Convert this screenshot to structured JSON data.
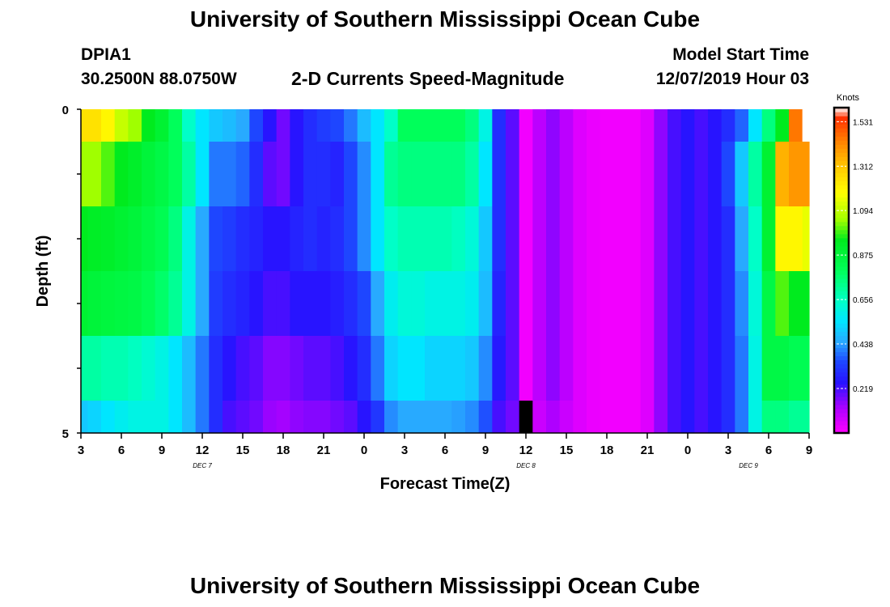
{
  "page": {
    "title_top": "University of Southern Mississippi Ocean Cube",
    "title_bottom": "University of Southern Mississippi Ocean Cube",
    "station_id": "DPIA1",
    "station_coords": "30.2500N 88.0750W",
    "plot_title": "2-D Currents Speed-Magnitude",
    "model_start_label": "Model Start Time",
    "model_start_value": "12/07/2019 Hour 03"
  },
  "colors": {
    "background": "#ffffff",
    "axis": "#000000",
    "missing": "#000000"
  },
  "chart_data": {
    "type": "heatmap",
    "xlabel": "Forecast Time(Z)",
    "ylabel": "Depth (ft)",
    "y_ticks": [
      "0",
      "5"
    ],
    "ylim": [
      0,
      5
    ],
    "x_range_hours": [
      0,
      54
    ],
    "x_tick_labels": [
      "3",
      "6",
      "9",
      "12",
      "15",
      "18",
      "21",
      "0",
      "3",
      "6",
      "9",
      "12",
      "15",
      "18",
      "21",
      "0",
      "3",
      "6",
      "9"
    ],
    "day_labels": [
      {
        "text": "DEC 7",
        "hour": 9
      },
      {
        "text": "DEC 8",
        "hour": 33
      },
      {
        "text": "DEC 9",
        "hour": 49.5
      }
    ],
    "colorbar": {
      "unit": "Knots",
      "min": 0,
      "max": 1.6,
      "tick_labels": [
        "1.531",
        "1.312",
        "1.094",
        "0.875",
        "0.656",
        "0.438",
        "0.219"
      ],
      "tick_values": [
        1.531,
        1.312,
        1.094,
        0.875,
        0.656,
        0.438,
        0.219
      ]
    },
    "depth_layers": [
      0.25,
      1.25,
      2.25,
      3.25,
      4.25,
      4.75
    ],
    "time_hours": [
      0,
      1,
      2,
      3,
      4,
      5,
      6,
      7,
      8,
      9,
      10,
      11,
      12,
      13,
      14,
      15,
      16,
      17,
      18,
      19,
      20,
      21,
      22,
      23,
      24,
      25,
      26,
      27,
      28,
      29,
      30,
      31,
      32,
      33,
      34,
      35,
      36,
      37,
      38,
      39,
      40,
      41,
      42,
      43,
      44,
      45,
      46,
      47,
      48,
      49,
      50,
      51,
      52,
      53,
      54
    ],
    "values": [
      [
        1.25,
        1.25,
        1.2,
        1.1,
        1.05,
        0.95,
        0.9,
        0.8,
        0.65,
        0.55,
        0.5,
        0.48,
        0.45,
        0.35,
        0.25,
        0.18,
        0.25,
        0.3,
        0.33,
        0.35,
        0.4,
        0.48,
        0.55,
        0.65,
        0.8,
        0.8,
        0.8,
        0.8,
        0.8,
        0.75,
        0.6,
        0.3,
        0.2,
        0.02,
        0.1,
        0.15,
        0.1,
        0.05,
        0.03,
        0.02,
        0.02,
        0.02,
        0.05,
        0.15,
        0.22,
        0.25,
        0.22,
        0.25,
        0.3,
        0.38,
        0.55,
        0.75,
        0.95,
        1.45,
        1.65
      ],
      [
        1.05,
        1.05,
        1.0,
        0.95,
        0.92,
        0.88,
        0.85,
        0.8,
        0.7,
        0.55,
        0.4,
        0.4,
        0.38,
        0.3,
        0.2,
        0.18,
        0.25,
        0.3,
        0.3,
        0.28,
        0.35,
        0.42,
        0.55,
        0.72,
        0.75,
        0.75,
        0.75,
        0.75,
        0.75,
        0.7,
        0.55,
        0.3,
        0.2,
        0.02,
        0.1,
        0.15,
        0.1,
        0.05,
        0.03,
        0.02,
        0.02,
        0.02,
        0.05,
        0.15,
        0.22,
        0.25,
        0.22,
        0.25,
        0.35,
        0.5,
        0.7,
        0.9,
        1.35,
        1.4,
        1.4
      ],
      [
        0.95,
        0.93,
        0.92,
        0.9,
        0.88,
        0.85,
        0.82,
        0.75,
        0.6,
        0.45,
        0.35,
        0.33,
        0.3,
        0.28,
        0.25,
        0.25,
        0.28,
        0.3,
        0.28,
        0.3,
        0.35,
        0.42,
        0.55,
        0.65,
        0.68,
        0.68,
        0.68,
        0.68,
        0.66,
        0.62,
        0.5,
        0.3,
        0.2,
        0.02,
        0.1,
        0.15,
        0.1,
        0.05,
        0.03,
        0.02,
        0.02,
        0.02,
        0.05,
        0.15,
        0.22,
        0.25,
        0.22,
        0.25,
        0.3,
        0.45,
        0.65,
        0.9,
        1.2,
        1.2,
        1.15
      ],
      [
        0.9,
        0.88,
        0.87,
        0.86,
        0.85,
        0.82,
        0.78,
        0.72,
        0.6,
        0.45,
        0.33,
        0.3,
        0.28,
        0.25,
        0.22,
        0.22,
        0.25,
        0.25,
        0.25,
        0.27,
        0.3,
        0.35,
        0.45,
        0.58,
        0.62,
        0.62,
        0.6,
        0.6,
        0.6,
        0.58,
        0.48,
        0.28,
        0.2,
        0.02,
        0.1,
        0.15,
        0.1,
        0.05,
        0.03,
        0.02,
        0.02,
        0.02,
        0.05,
        0.15,
        0.22,
        0.25,
        0.22,
        0.25,
        0.3,
        0.42,
        0.62,
        0.85,
        1.0,
        0.95,
        0.95
      ],
      [
        0.7,
        0.7,
        0.68,
        0.68,
        0.66,
        0.63,
        0.6,
        0.55,
        0.48,
        0.4,
        0.3,
        0.25,
        0.22,
        0.2,
        0.16,
        0.16,
        0.18,
        0.2,
        0.2,
        0.22,
        0.25,
        0.3,
        0.4,
        0.52,
        0.55,
        0.55,
        0.52,
        0.52,
        0.52,
        0.5,
        0.42,
        0.26,
        0.2,
        0.02,
        0.1,
        0.15,
        0.1,
        0.05,
        0.03,
        0.02,
        0.02,
        0.02,
        0.05,
        0.15,
        0.22,
        0.25,
        0.22,
        0.25,
        0.3,
        0.4,
        0.6,
        0.85,
        0.85,
        0.82,
        0.82
      ],
      [
        0.5,
        0.52,
        0.55,
        0.58,
        0.6,
        0.6,
        0.6,
        0.55,
        0.48,
        0.4,
        0.3,
        0.22,
        0.2,
        0.18,
        0.14,
        0.13,
        0.15,
        0.16,
        0.16,
        0.18,
        0.2,
        0.25,
        0.32,
        0.42,
        0.45,
        0.45,
        0.45,
        0.45,
        0.44,
        0.42,
        0.36,
        0.22,
        0.18,
        null,
        0.08,
        0.12,
        0.08,
        0.05,
        0.03,
        0.02,
        0.02,
        0.02,
        0.05,
        0.15,
        0.22,
        0.25,
        0.22,
        0.25,
        0.3,
        0.4,
        0.6,
        0.75,
        0.75,
        0.72,
        0.72
      ]
    ]
  }
}
